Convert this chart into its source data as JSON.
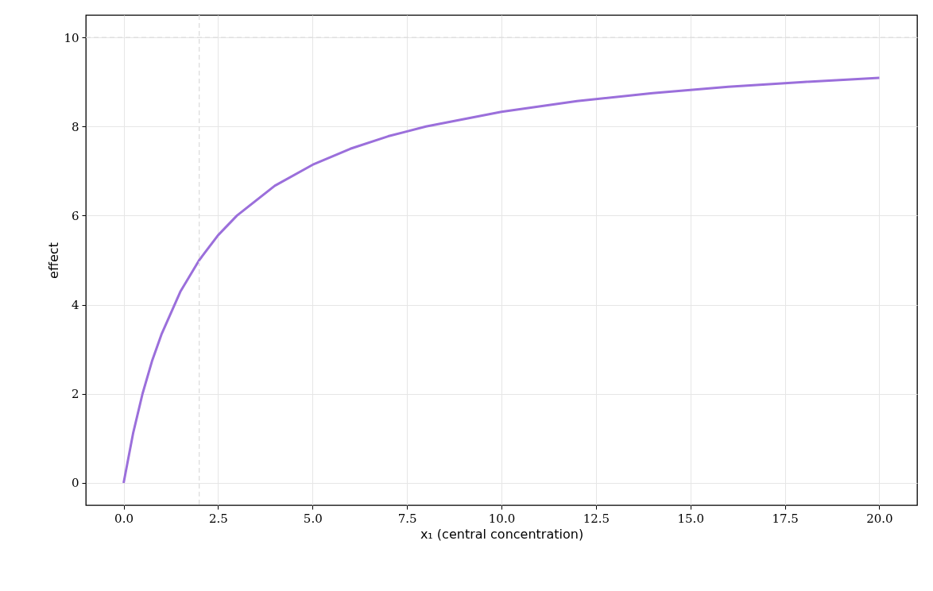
{
  "chart_data": {
    "type": "line",
    "xlabel": "x₁ (central concentration)",
    "ylabel": "effect",
    "x": [
      0,
      0.25,
      0.5,
      0.75,
      1,
      1.5,
      2,
      2.5,
      3,
      4,
      5,
      6,
      7,
      8,
      10,
      12,
      14,
      16,
      18,
      20
    ],
    "series": [
      {
        "color": "#9b6fdb",
        "values": [
          0,
          1.11,
          2.0,
          2.73,
          3.33,
          4.29,
          5.0,
          5.56,
          6.0,
          6.67,
          7.14,
          7.5,
          7.78,
          8.0,
          8.33,
          8.57,
          8.75,
          8.89,
          9.0,
          9.09
        ]
      }
    ],
    "xlim": [
      -1,
      21
    ],
    "xticks": [
      {
        "value": 0,
        "label": "0.0"
      },
      {
        "value": 2.5,
        "label": "2.5"
      },
      {
        "value": 5,
        "label": "5.0"
      },
      {
        "value": 7.5,
        "label": "7.5"
      },
      {
        "value": 10,
        "label": "10.0"
      },
      {
        "value": 12.5,
        "label": "12.5"
      },
      {
        "value": 15,
        "label": "15.0"
      },
      {
        "value": 17.5,
        "label": "17.5"
      },
      {
        "value": 20,
        "label": "20.0"
      }
    ],
    "ylim": [
      -0.5,
      10.5
    ],
    "yticks": [
      0,
      2,
      4,
      6,
      8,
      10
    ],
    "ref_lines": [
      {
        "axis": "x",
        "value": 2,
        "color": "#dddddd",
        "line_style": "dashed"
      },
      {
        "axis": "y",
        "value": 10,
        "color": "#dddddd",
        "line_style": "dashed"
      }
    ],
    "grid": true,
    "line_style": "solid",
    "marker": "none"
  }
}
